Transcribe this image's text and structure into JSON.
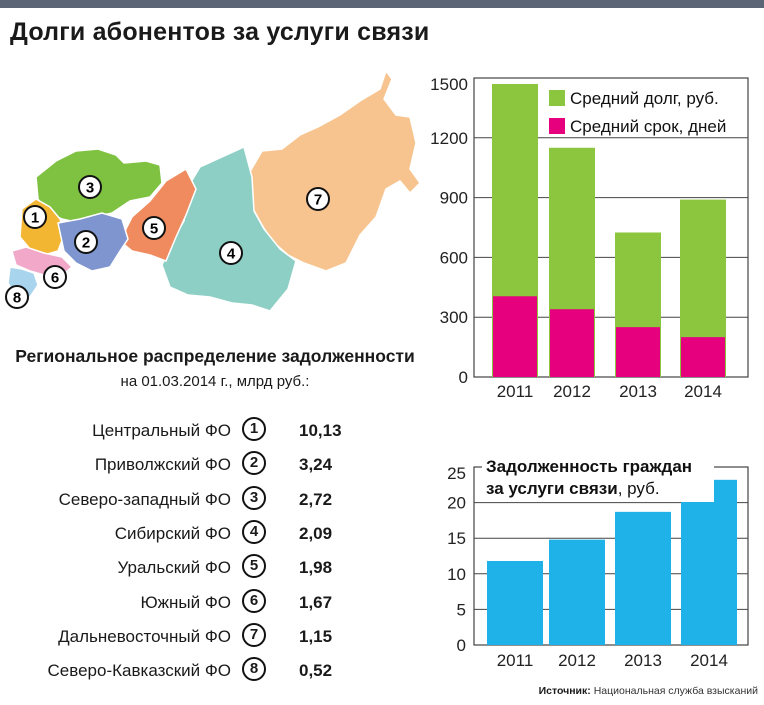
{
  "colors": {
    "top_bar": "#5b6575",
    "green": "#8cc63f",
    "magenta": "#e6007e",
    "blue": "#1fb2e8",
    "frame": "#444444"
  },
  "title": "Долги абонентов за услуги связи",
  "map": {
    "labels": [
      "1",
      "2",
      "3",
      "4",
      "5",
      "6",
      "7",
      "8"
    ],
    "region_colors": [
      "#f2b632",
      "#7f95cf",
      "#7fc242",
      "#8ecfc5",
      "#ef8b5e",
      "#f2a8c8",
      "#f7c48f",
      "#a9d4ee"
    ]
  },
  "regional": {
    "title": "Региональное распределение задолженности",
    "subtitle": "на 01.03.2014 г., млрд руб.:",
    "rows": [
      {
        "name": "Центральный ФО",
        "num": "1",
        "value": "10,13"
      },
      {
        "name": "Приволжский ФО",
        "num": "2",
        "value": "3,24"
      },
      {
        "name": "Северо-западный ФО",
        "num": "3",
        "value": "2,72"
      },
      {
        "name": "Сибирский ФО",
        "num": "4",
        "value": "2,09"
      },
      {
        "name": "Уральский ФО",
        "num": "5",
        "value": "1,98"
      },
      {
        "name": "Южный ФО",
        "num": "6",
        "value": "1,67"
      },
      {
        "name": "Дальневосточный ФО",
        "num": "7",
        "value": "1,15"
      },
      {
        "name": "Северо-Кавказский ФО",
        "num": "8",
        "value": "0,52"
      }
    ]
  },
  "chart_data": [
    {
      "type": "bar",
      "categories": [
        "2011",
        "2012",
        "2013",
        "2014"
      ],
      "series": [
        {
          "name": "Средний долг, руб.",
          "values": [
            1470,
            1150,
            725,
            890
          ],
          "color": "#8cc63f"
        },
        {
          "name": "Средний срок, дней",
          "values": [
            405,
            340,
            250,
            200
          ],
          "color": "#e6007e"
        }
      ],
      "yticks": [
        "0",
        "300",
        "600",
        "900",
        "1200",
        "1500"
      ],
      "ylim": [
        0,
        1500
      ],
      "grid": true,
      "legend": "top-right"
    },
    {
      "type": "bar",
      "title_line1": "Задолженность граждан",
      "title_line2_bold": "за услуги связи",
      "title_line2_rest": ", руб.",
      "categories": [
        "2011",
        "2012",
        "2013",
        "2014"
      ],
      "values": [
        11.8,
        14.8,
        18.7,
        23.2
      ],
      "color": "#1fb2e8",
      "yticks": [
        "0",
        "5",
        "10",
        "15",
        "20",
        "25"
      ],
      "ylim": [
        0,
        25
      ],
      "grid": true
    }
  ],
  "source": {
    "label": "Источник:",
    "text": "Национальная служба взысканий"
  }
}
